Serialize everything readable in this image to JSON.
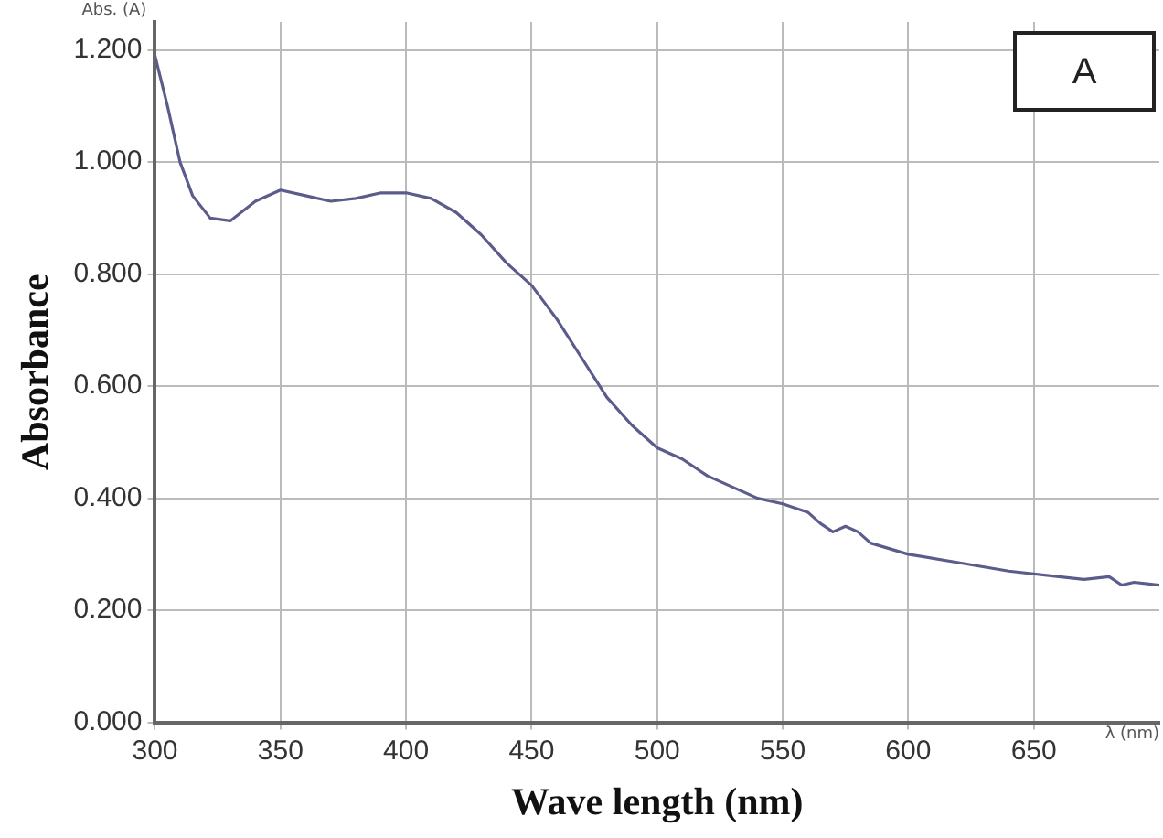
{
  "chart_data": {
    "type": "line",
    "xlabel": "Wave length (nm)",
    "ylabel": "Absorbance",
    "annotations": [
      "A",
      "λ (nm)",
      "Abs. (A)"
    ],
    "x": [
      300,
      305,
      310,
      315,
      322,
      330,
      340,
      350,
      360,
      370,
      380,
      390,
      400,
      410,
      420,
      430,
      440,
      450,
      460,
      470,
      480,
      490,
      500,
      510,
      520,
      530,
      540,
      550,
      560,
      565,
      570,
      575,
      580,
      585,
      600,
      620,
      640,
      660,
      670,
      680,
      685,
      690,
      700
    ],
    "series": [
      {
        "color": "#5c5c8c",
        "values": [
          1.19,
          1.1,
          1.0,
          0.94,
          0.9,
          0.895,
          0.93,
          0.95,
          0.94,
          0.93,
          0.935,
          0.945,
          0.945,
          0.935,
          0.91,
          0.87,
          0.82,
          0.78,
          0.72,
          0.65,
          0.58,
          0.53,
          0.49,
          0.47,
          0.44,
          0.42,
          0.4,
          0.39,
          0.375,
          0.355,
          0.34,
          0.35,
          0.34,
          0.32,
          0.3,
          0.285,
          0.27,
          0.26,
          0.255,
          0.26,
          0.245,
          0.25,
          0.245
        ]
      }
    ],
    "xlim": [
      300,
      700
    ],
    "xticks": [
      300,
      350,
      400,
      450,
      500,
      550,
      600,
      650
    ],
    "ylim": [
      0,
      1.25
    ],
    "yticks": [
      {
        "value": 0,
        "label": "0.000"
      },
      {
        "value": 0.2,
        "label": "0.200"
      },
      {
        "value": 0.4,
        "label": "0.400"
      },
      {
        "value": 0.6,
        "label": "0.600"
      },
      {
        "value": 0.8,
        "label": "0.800"
      },
      {
        "value": 1,
        "label": "1.000"
      },
      {
        "value": 1.2,
        "label": "1.200"
      }
    ],
    "grid": true,
    "legend": false,
    "marker": "none",
    "line_style": "solid"
  }
}
